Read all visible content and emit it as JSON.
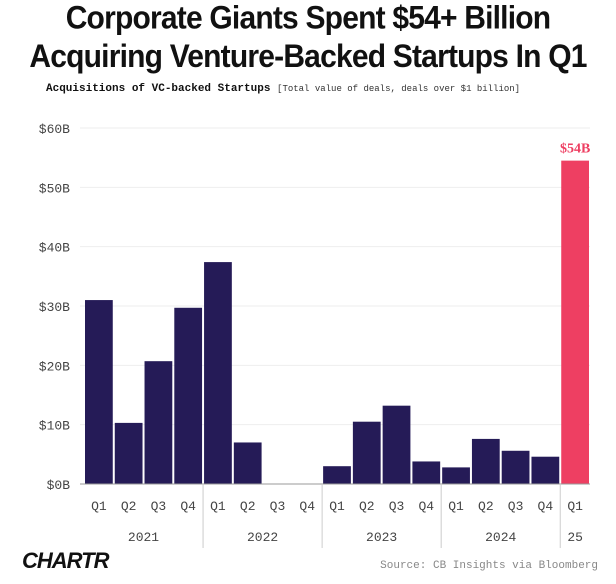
{
  "header": {
    "title_line1": "Corporate Giants Spent $54+ Billion",
    "title_line2": "Acquiring Venture-Backed Startups In Q1",
    "subtitle": "Acquisitions of VC-backed Startups",
    "subtitle_note": "[Total value of deals, deals over $1 billion]"
  },
  "footer": {
    "logo": "CHARTR",
    "source": "Source: CB Insights via Bloomberg"
  },
  "colors": {
    "bar": "#251b57",
    "highlight": "#ee3f62",
    "grid": "#eeeeee",
    "axis_text": "#444444"
  },
  "chart_data": {
    "type": "bar",
    "title": "Acquisitions of VC-backed Startups",
    "ylabel": "Total value of deals, deals over $1 billion",
    "ylim": [
      0,
      60
    ],
    "yticks": [
      0,
      10,
      20,
      30,
      40,
      50,
      60
    ],
    "ytick_labels": [
      "$0B",
      "$10B",
      "$20B",
      "$30B",
      "$40B",
      "$50B",
      "$60B"
    ],
    "categories": [
      "Q1",
      "Q2",
      "Q3",
      "Q4",
      "Q1",
      "Q2",
      "Q3",
      "Q4",
      "Q1",
      "Q2",
      "Q3",
      "Q4",
      "Q1",
      "Q2",
      "Q3",
      "Q4",
      "Q1"
    ],
    "values": [
      31,
      10.3,
      20.7,
      29.7,
      37.4,
      7,
      0,
      0,
      3,
      10.5,
      13.2,
      3.8,
      2.8,
      7.6,
      5.6,
      4.6,
      54.5
    ],
    "year_groups": [
      {
        "label": "2021",
        "count": 4
      },
      {
        "label": "2022",
        "count": 4
      },
      {
        "label": "2023",
        "count": 4
      },
      {
        "label": "2024",
        "count": 4
      },
      {
        "label": "25",
        "count": 1
      }
    ],
    "highlight_index": 16,
    "annotation": "$54B"
  }
}
